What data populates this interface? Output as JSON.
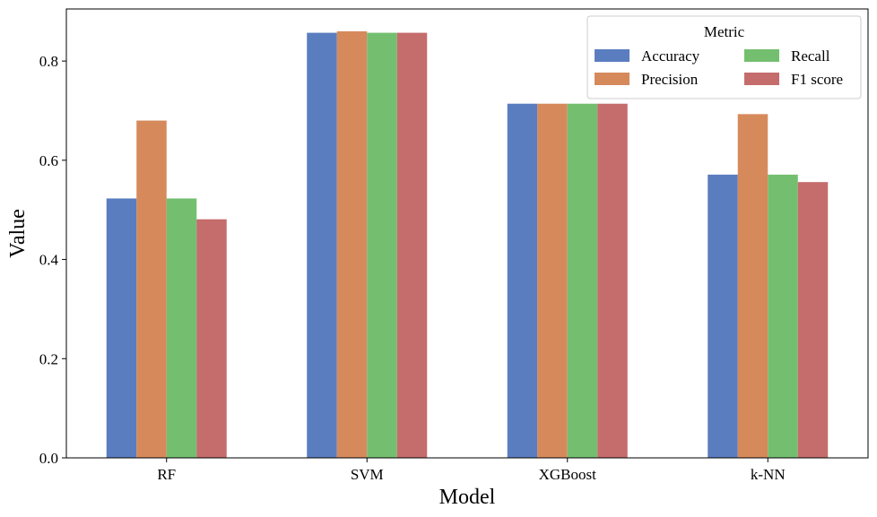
{
  "chart_data": {
    "type": "bar",
    "xlabel": "Model",
    "ylabel": "Value",
    "categories": [
      "RF",
      "SVM",
      "XGBoost",
      "k-NN"
    ],
    "ylim": [
      0,
      0.905
    ],
    "yticks": [
      0.0,
      0.2,
      0.4,
      0.6,
      0.8
    ],
    "ytick_labels": [
      "0.0",
      "0.2",
      "0.4",
      "0.6",
      "0.8"
    ],
    "grid": false,
    "legend": {
      "title": "Metric",
      "placement": "top-right",
      "columns": 2
    },
    "series": [
      {
        "name": "Accuracy",
        "color": "#5a7dc0",
        "values": [
          0.523,
          0.857,
          0.714,
          0.571
        ]
      },
      {
        "name": "Precision",
        "color": "#d68a5c",
        "values": [
          0.68,
          0.86,
          0.714,
          0.693
        ]
      },
      {
        "name": "Recall",
        "color": "#74bf6f",
        "values": [
          0.523,
          0.857,
          0.714,
          0.571
        ]
      },
      {
        "name": "F1 score",
        "color": "#c56c6c",
        "values": [
          0.481,
          0.857,
          0.714,
          0.556
        ]
      }
    ]
  }
}
